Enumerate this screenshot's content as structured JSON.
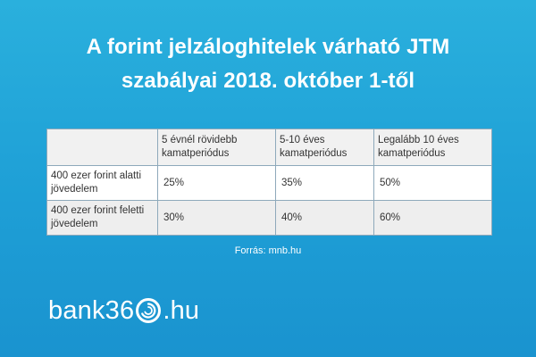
{
  "title": {
    "line1": "A forint jelzáloghitelek várható JTM",
    "line2": "szabályai 2018. október 1-től"
  },
  "table": {
    "headers": [
      "",
      "5 évnél rövidebb kamatperiódus",
      "5-10 éves kamatperiódus",
      "Legalább 10 éves kamatperiódus"
    ],
    "rows": [
      {
        "label": "400 ezer forint alatti jövedelem",
        "values": [
          "25%",
          "35%",
          "50%"
        ]
      },
      {
        "label": "400 ezer forint feletti jövedelem",
        "values": [
          "30%",
          "40%",
          "60%"
        ]
      }
    ]
  },
  "source": "Forrás: mnb.hu",
  "logo": {
    "text_before": "bank36",
    "text_after": ".hu",
    "icon": "circular-swirl-icon"
  },
  "colors": {
    "background": "#1e9fd6",
    "text": "#ffffff",
    "table_border": "#8ea9bb"
  }
}
